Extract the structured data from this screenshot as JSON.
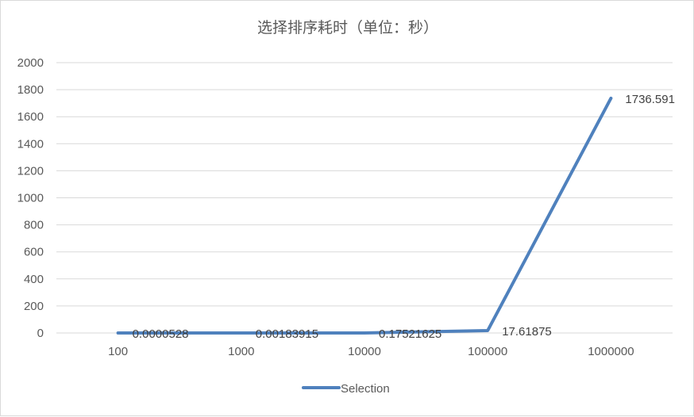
{
  "chart_data": {
    "type": "line",
    "title": "选择排序耗时（单位：秒）",
    "categories": [
      "100",
      "1000",
      "10000",
      "100000",
      "1000000"
    ],
    "series": [
      {
        "name": "Selection",
        "values": [
          5.28e-05,
          0.00183915,
          0.17521625,
          17.61875,
          1736.591
        ],
        "labels": [
          "0.0000528",
          "0.00183915",
          "0.17521625",
          "17.61875",
          "1736.591"
        ],
        "color": "#4f81bd"
      }
    ],
    "ylim": [
      0,
      2000
    ],
    "yticks": [
      "0",
      "200",
      "400",
      "600",
      "800",
      "1000",
      "1200",
      "1400",
      "1600",
      "1800",
      "2000"
    ],
    "grid": true,
    "legend_position": "bottom"
  }
}
